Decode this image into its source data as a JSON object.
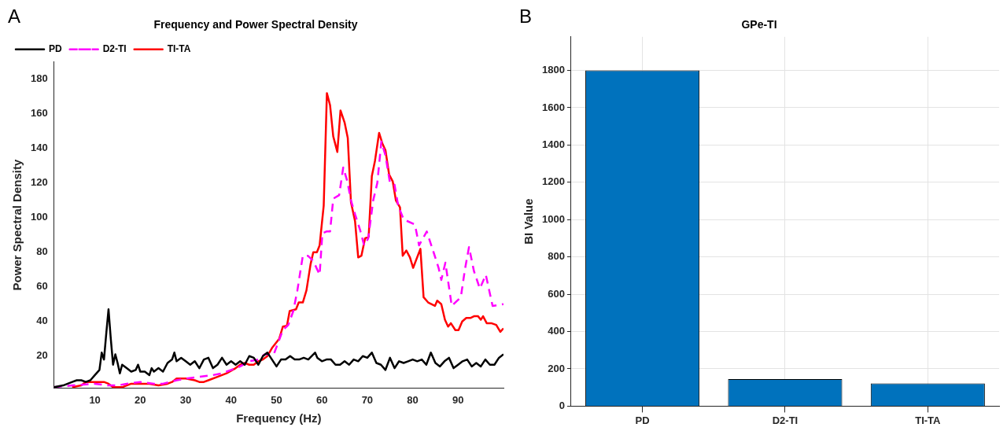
{
  "chart_data": [
    {
      "type": "line",
      "title": "Frequency and Power Spectral Density",
      "xlabel": "Frequency (Hz)",
      "ylabel": "Power Spectral Density",
      "annotations": [
        "A"
      ],
      "xlim": [
        1,
        100
      ],
      "xticks": [
        10,
        20,
        30,
        40,
        50,
        60,
        70,
        80,
        90
      ],
      "ylim": [
        1.5,
        190
      ],
      "yticks": [
        20,
        40,
        60,
        80,
        100,
        120,
        140,
        160,
        180
      ],
      "legend": "top left",
      "marker": "none",
      "series": [
        {
          "name": "PD",
          "color": "#000000",
          "line_style": "solid",
          "x": [
            1,
            3,
            4,
            5,
            6,
            7,
            8,
            9,
            10,
            11,
            11.5,
            12,
            12.5,
            13,
            13.5,
            14,
            14.5,
            15,
            15.5,
            16,
            17,
            18,
            19,
            19.5,
            20,
            21,
            22,
            22.5,
            23,
            24,
            25,
            26,
            27,
            27.5,
            28,
            29,
            30,
            31,
            32,
            33,
            34,
            35,
            36,
            37,
            38,
            39,
            40,
            41,
            42,
            43,
            44,
            45,
            46,
            47,
            48,
            49,
            50,
            51,
            52,
            53,
            54,
            55,
            56,
            57,
            58.5,
            59,
            60,
            61,
            62,
            63,
            64,
            65,
            66,
            67,
            68,
            69,
            70,
            71,
            72,
            73,
            74,
            75,
            76,
            77,
            78,
            79,
            80,
            81,
            82,
            83,
            84,
            85,
            86,
            87,
            88,
            89,
            90,
            91,
            92,
            93,
            94,
            95,
            96,
            97,
            98,
            99,
            100
          ],
          "values": [
            2,
            3,
            4,
            5,
            6,
            6,
            5,
            6,
            9,
            12,
            22,
            18,
            33,
            47,
            30,
            15,
            21,
            16,
            10,
            15,
            13,
            11,
            12,
            15,
            11,
            11,
            9,
            13,
            11,
            13,
            11,
            16,
            18,
            22,
            17,
            19,
            17,
            15,
            17,
            13,
            18,
            19,
            13,
            15,
            19,
            15,
            17,
            15,
            17,
            15,
            20,
            19,
            15,
            20,
            22,
            18,
            14,
            18,
            18,
            20,
            18,
            18,
            19,
            18,
            22,
            19,
            17,
            18,
            18,
            15,
            15,
            17,
            15,
            18,
            17,
            20,
            19,
            22,
            16,
            15,
            12,
            19,
            13,
            17,
            16,
            17,
            18,
            17,
            18,
            15,
            22,
            16,
            14,
            17,
            19,
            13,
            15,
            17,
            18,
            14,
            16,
            14,
            18,
            15,
            15,
            19,
            21
          ]
        },
        {
          "name": "D2-TI",
          "color": "#ff00ff",
          "line_style": "dashed",
          "x": [
            1,
            5,
            10,
            13,
            15,
            17,
            20,
            23,
            25,
            28,
            30,
            33,
            36,
            38,
            40,
            42,
            44,
            46,
            47.4,
            49.4,
            51.4,
            52.6,
            53.7,
            54.6,
            55.8,
            56.9,
            58.1,
            59.5,
            60.1,
            61,
            61.8,
            62.5,
            63.8,
            64.7,
            65.6,
            66.4,
            67.3,
            68.4,
            69.3,
            70.2,
            71.3,
            72.2,
            73.1,
            74,
            75,
            76,
            76.8,
            78,
            80.5,
            81.4,
            83.1,
            84.6,
            85.7,
            86.3,
            87.2,
            88.6,
            90.6,
            91.5,
            92.4,
            93.5,
            94.8,
            96.1,
            97.6,
            100
          ],
          "values": [
            2,
            3,
            4,
            3,
            3,
            4,
            5,
            4,
            4,
            6,
            7,
            8,
            9,
            10,
            12,
            14,
            17,
            18,
            21,
            21,
            35,
            38,
            46,
            58,
            78,
            78,
            75,
            67,
            91,
            92,
            92,
            111,
            113,
            129,
            121,
            110,
            102,
            93,
            84,
            88,
            110,
            120,
            144,
            136,
            120,
            119,
            107,
            99,
            96,
            84,
            92,
            80,
            71,
            64,
            74,
            49,
            54,
            70,
            83,
            69,
            59,
            67,
            49,
            50
          ]
        },
        {
          "name": "TI-TA",
          "color": "#ff0000",
          "line_style": "solid",
          "x": [
            5,
            7,
            8,
            9,
            12,
            13,
            14,
            15,
            16,
            18,
            20,
            22,
            24,
            26,
            27,
            28,
            30,
            32,
            33,
            34,
            35,
            37,
            39,
            41,
            42,
            43,
            44,
            45,
            46,
            47,
            48,
            49.1,
            50.6,
            51.4,
            52.3,
            52.9,
            54.3,
            54.9,
            55.8,
            56.6,
            57.5,
            58.1,
            58.9,
            59.5,
            60.4,
            61.1,
            61.8,
            62.5,
            63.4,
            64.1,
            65,
            65.7,
            66.4,
            67.3,
            68,
            68.7,
            69.5,
            70.3,
            71,
            71.7,
            72.6,
            73.3,
            74,
            74.8,
            75.6,
            76.3,
            77.2,
            77.8,
            78.6,
            79.4,
            80.1,
            81.7,
            82.4,
            83.4,
            84.9,
            85.4,
            86.3,
            87.1,
            87.8,
            88.4,
            89.4,
            90.1,
            90.9,
            91.8,
            92.7,
            93.5,
            94.4,
            95,
            95.5,
            96.3,
            97.3,
            98.4,
            99.3,
            100
          ],
          "values": [
            2,
            3,
            5,
            5,
            5,
            4,
            2,
            2,
            2,
            4,
            4,
            4,
            3,
            4,
            5,
            7,
            7,
            6,
            5,
            5,
            6,
            8,
            10,
            13,
            15,
            16,
            15,
            15,
            17,
            18,
            20,
            25,
            30,
            37,
            37.5,
            46,
            47,
            51,
            51,
            58,
            73,
            80,
            80,
            84,
            107,
            172,
            165,
            147,
            138,
            162,
            155,
            146,
            109,
            98,
            77,
            78,
            88,
            89,
            124,
            133,
            149,
            143,
            139,
            125,
            121,
            110,
            106,
            78,
            81,
            77,
            71,
            82,
            54,
            51,
            49,
            52,
            50,
            41,
            37,
            39,
            35,
            35,
            40,
            42,
            42,
            43,
            43,
            41,
            43,
            39,
            39,
            38,
            34,
            36
          ]
        }
      ]
    },
    {
      "type": "bar",
      "title": "GPe-TI",
      "ylabel": "BI Value",
      "annotations": [
        "B"
      ],
      "categories": [
        "PD",
        "D2-TI",
        "TI-TA"
      ],
      "values": [
        1800,
        145,
        122
      ],
      "color": "#0072bd",
      "ylim": [
        0,
        1980
      ],
      "yticks": [
        0,
        200,
        400,
        600,
        800,
        1000,
        1200,
        1400,
        1600,
        1800
      ],
      "grid": true
    }
  ]
}
